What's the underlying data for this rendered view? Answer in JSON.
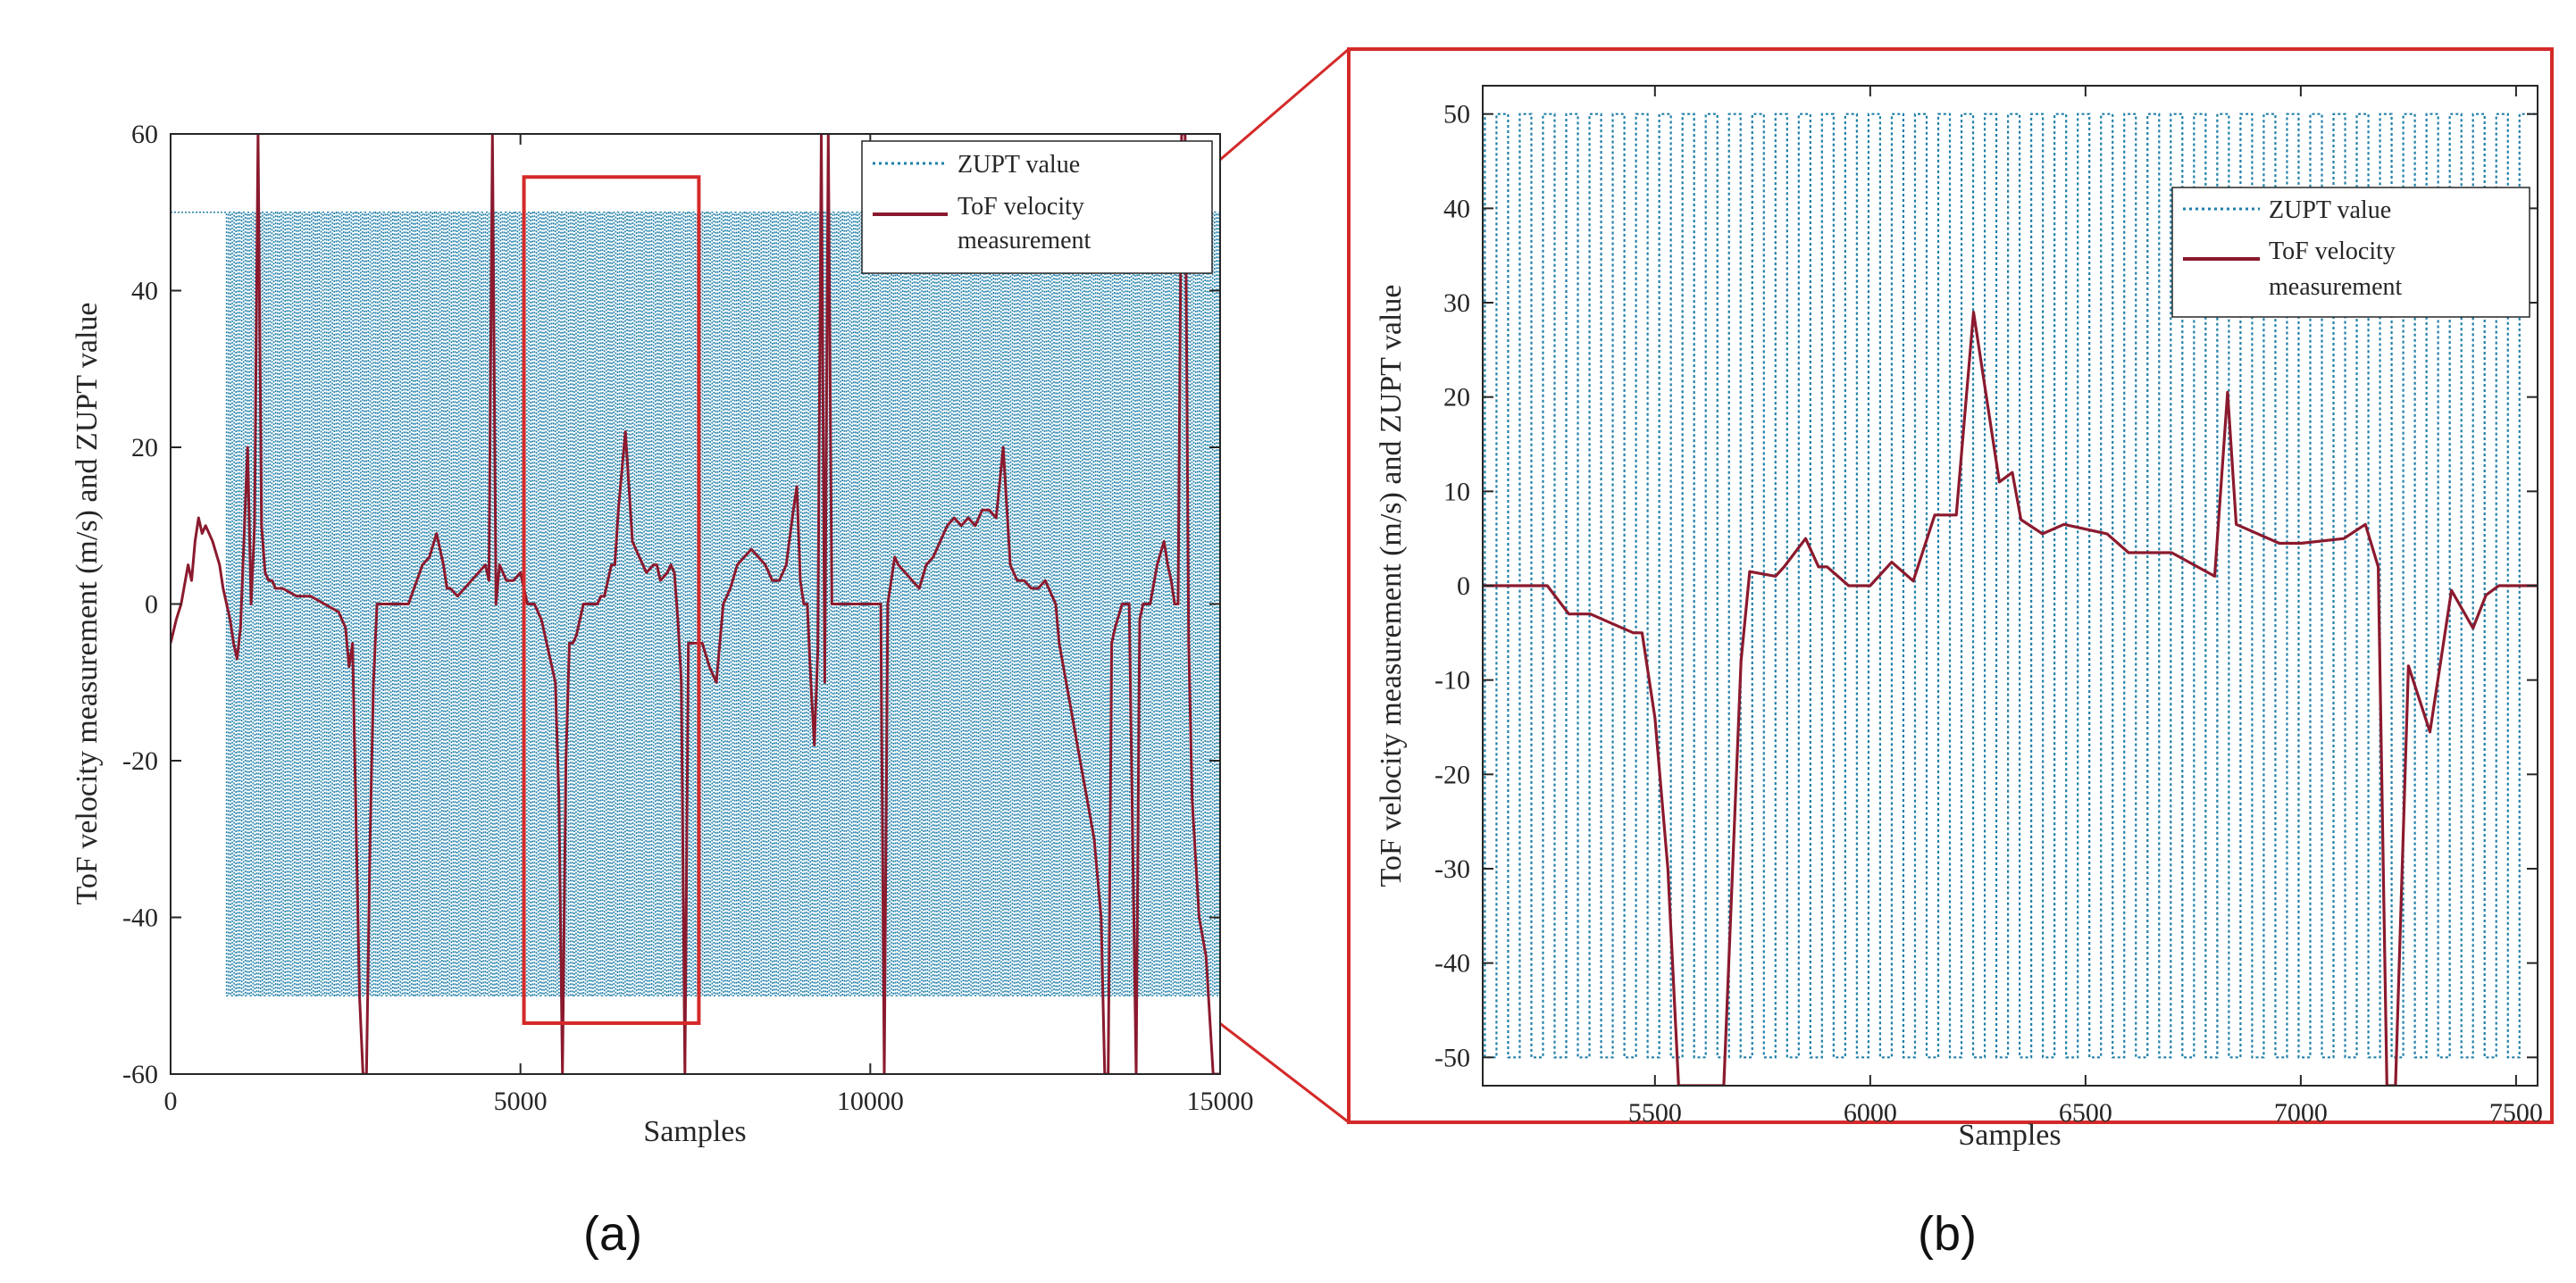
{
  "chart_data": [
    {
      "panel": "(a)",
      "type": "line",
      "xlabel": "Samples",
      "ylabel": "ToF velocity measurement (m/s) and ZUPT value",
      "xlim": [
        0,
        15000
      ],
      "ylim": [
        -60,
        60
      ],
      "xticks": [
        0,
        5000,
        10000,
        15000
      ],
      "xtick_labels": [
        "0",
        "5000",
        "10000",
        "15000"
      ],
      "yticks": [
        -60,
        -40,
        -20,
        0,
        20,
        40,
        60
      ],
      "ytick_labels": [
        "-60",
        "-40",
        "-20",
        "0",
        "20",
        "40",
        "60"
      ],
      "grid": false,
      "legend_position": "top-right",
      "zoom_box": {
        "x": [
          5050,
          7550
        ],
        "y": [
          -53.5,
          54.5
        ]
      },
      "series": [
        {
          "name": "ZUPT value",
          "style": "dotted",
          "color": "#1f7fa8",
          "square_wave": {
            "start": 800,
            "end": 15000,
            "high": 50,
            "low": -50,
            "period": 54,
            "level_before_start": 50
          }
        },
        {
          "name": "ToF velocity measurement",
          "style": "solid",
          "color": "#8b1a2e",
          "x": [
            0,
            80,
            150,
            250,
            300,
            350,
            400,
            450,
            500,
            550,
            600,
            700,
            750,
            800,
            850,
            900,
            950,
            1000,
            1100,
            1150,
            1200,
            1250,
            1300,
            1350,
            1400,
            1450,
            1500,
            1550,
            1600,
            1800,
            2000,
            2200,
            2400,
            2500,
            2550,
            2600,
            2700,
            2750,
            2780,
            2800,
            2850,
            2900,
            2950,
            3000,
            3100,
            3200,
            3400,
            3600,
            3700,
            3800,
            3900,
            3950,
            4000,
            4100,
            4200,
            4300,
            4400,
            4500,
            4550,
            4600,
            4650,
            4700,
            4800,
            4900,
            5000,
            5100,
            5200,
            5300,
            5400,
            5500,
            5550,
            5600,
            5650,
            5700,
            5750,
            5800,
            5900,
            6000,
            6050,
            6100,
            6150,
            6200,
            6250,
            6300,
            6350,
            6400,
            6500,
            6600,
            6700,
            6800,
            6900,
            6950,
            7000,
            7100,
            7150,
            7200,
            7250,
            7300,
            7350,
            7400,
            7500,
            7600,
            7700,
            7800,
            7900,
            8000,
            8100,
            8200,
            8300,
            8400,
            8500,
            8600,
            8700,
            8800,
            8900,
            8950,
            9000,
            9050,
            9100,
            9150,
            9200,
            9250,
            9300,
            9350,
            9400,
            9450,
            9500,
            9550,
            9600,
            9700,
            9800,
            9900,
            10000,
            10050,
            10100,
            10150,
            10200,
            10250,
            10300,
            10350,
            10400,
            10500,
            10600,
            10700,
            10800,
            10900,
            11000,
            11100,
            11200,
            11300,
            11400,
            11500,
            11550,
            11600,
            11700,
            11800,
            11900,
            12000,
            12100,
            12200,
            12300,
            12400,
            12500,
            12600,
            12650,
            12700,
            12800,
            12900,
            13000,
            13100,
            13200,
            13300,
            13350,
            13400,
            13450,
            13500,
            13600,
            13700,
            13800,
            13850,
            13900,
            14000,
            14100,
            14200,
            14250,
            14300,
            14350,
            14400,
            14450,
            14500,
            14550,
            14600,
            14700,
            14800,
            14900,
            14950,
            15000
          ],
          "y": [
            -5,
            -2,
            0,
            5,
            3,
            8,
            11,
            9,
            10,
            9,
            8,
            5,
            2,
            0,
            -2,
            -5,
            -7,
            -3,
            20,
            0,
            10,
            60,
            10,
            4,
            3,
            3,
            2,
            2,
            2,
            1,
            1,
            0,
            -1,
            -3,
            -8,
            -5,
            -50,
            -60,
            -60,
            -60,
            -30,
            -10,
            0,
            0,
            0,
            0,
            0,
            5,
            6,
            9,
            5,
            2,
            2,
            1,
            2,
            3,
            4,
            5,
            3,
            60,
            0,
            5,
            3,
            3,
            4,
            0,
            0,
            -2,
            -6,
            -10,
            -25,
            -60,
            -20,
            -5,
            -5,
            -4,
            0,
            0,
            0,
            0,
            1,
            1,
            3,
            5,
            5,
            12,
            22,
            8,
            6,
            4,
            5,
            5,
            3,
            4,
            5,
            4,
            -2,
            -10,
            -60,
            -5,
            -5,
            -5,
            -8,
            -10,
            0,
            2,
            5,
            6,
            7,
            6,
            5,
            3,
            3,
            5,
            12,
            15,
            3,
            0,
            0,
            -10,
            -18,
            -6,
            60,
            -10,
            60,
            0,
            0,
            0,
            0,
            0,
            0,
            0,
            0,
            0,
            0,
            0,
            -60,
            0,
            3,
            6,
            5,
            4,
            3,
            2,
            5,
            6,
            8,
            10,
            11,
            10,
            11,
            10,
            11,
            12,
            12,
            11,
            20,
            5,
            3,
            3,
            2,
            2,
            3,
            1,
            0,
            -5,
            -10,
            -15,
            -20,
            -25,
            -30,
            -40,
            -60,
            -60,
            -5,
            -3,
            0,
            0,
            -60,
            -2,
            0,
            0,
            5,
            8,
            5,
            3,
            0,
            0,
            60,
            60,
            -5,
            -25,
            -40,
            -45,
            -60,
            -60,
            -60
          ]
        }
      ]
    },
    {
      "panel": "(b)",
      "type": "line",
      "xlabel": "Samples",
      "ylabel": "ToF velocity measurement (m/s) and ZUPT value",
      "xlim": [
        5100,
        7550
      ],
      "ylim": [
        -53,
        53
      ],
      "xticks": [
        5500,
        6000,
        6500,
        7000,
        7500
      ],
      "xtick_labels": [
        "5500",
        "6000",
        "6500",
        "7000",
        "7500"
      ],
      "yticks": [
        -50,
        -40,
        -30,
        -20,
        -10,
        0,
        10,
        20,
        30,
        40,
        50
      ],
      "ytick_labels": [
        "-50",
        "-40",
        "-30",
        "-20",
        "-10",
        "0",
        "10",
        "20",
        "30",
        "40",
        "50"
      ],
      "grid": false,
      "legend_position": "top-right",
      "series": [
        {
          "name": "ZUPT value",
          "style": "dotted",
          "color": "#1f7fa8",
          "square_wave": {
            "start": 5105,
            "end": 7525,
            "high": 50,
            "low": -50,
            "period": 54,
            "level_before_start": 50
          }
        },
        {
          "name": "ToF velocity measurement",
          "style": "solid",
          "color": "#8b1a2e",
          "x": [
            5100,
            5250,
            5300,
            5350,
            5400,
            5450,
            5470,
            5500,
            5530,
            5555,
            5600,
            5660,
            5700,
            5720,
            5780,
            5800,
            5850,
            5880,
            5900,
            5950,
            6000,
            6050,
            6100,
            6150,
            6200,
            6240,
            6300,
            6330,
            6350,
            6400,
            6450,
            6550,
            6600,
            6700,
            6800,
            6830,
            6850,
            6950,
            7000,
            7100,
            7150,
            7180,
            7200,
            7220,
            7250,
            7300,
            7350,
            7400,
            7430,
            7460,
            7550
          ],
          "y": [
            0,
            0,
            -3,
            -3,
            -4,
            -5,
            -5,
            -14,
            -30,
            -53,
            -53,
            -53,
            -8,
            1.5,
            1,
            2,
            5,
            2,
            2,
            0,
            0,
            2.5,
            0.5,
            7.5,
            7.5,
            29,
            11,
            12,
            7,
            5.5,
            6.5,
            5.5,
            3.5,
            3.5,
            1,
            20.5,
            6.5,
            4.5,
            4.5,
            5,
            6.5,
            2,
            -53,
            -53,
            -8.5,
            -15.5,
            -0.5,
            -4.5,
            -1,
            0,
            0
          ]
        }
      ]
    }
  ],
  "legend": {
    "zupt_label": "ZUPT value",
    "tof_label_line1": "ToF velocity",
    "tof_label_line2": "measurement"
  },
  "panel_labels": {
    "a": "(a)",
    "b": "(b)"
  },
  "colors": {
    "zupt": "#1f7fa8",
    "tof": "#8b1a2e",
    "zoom_box": "#d42a2a",
    "axes": "#262626"
  }
}
